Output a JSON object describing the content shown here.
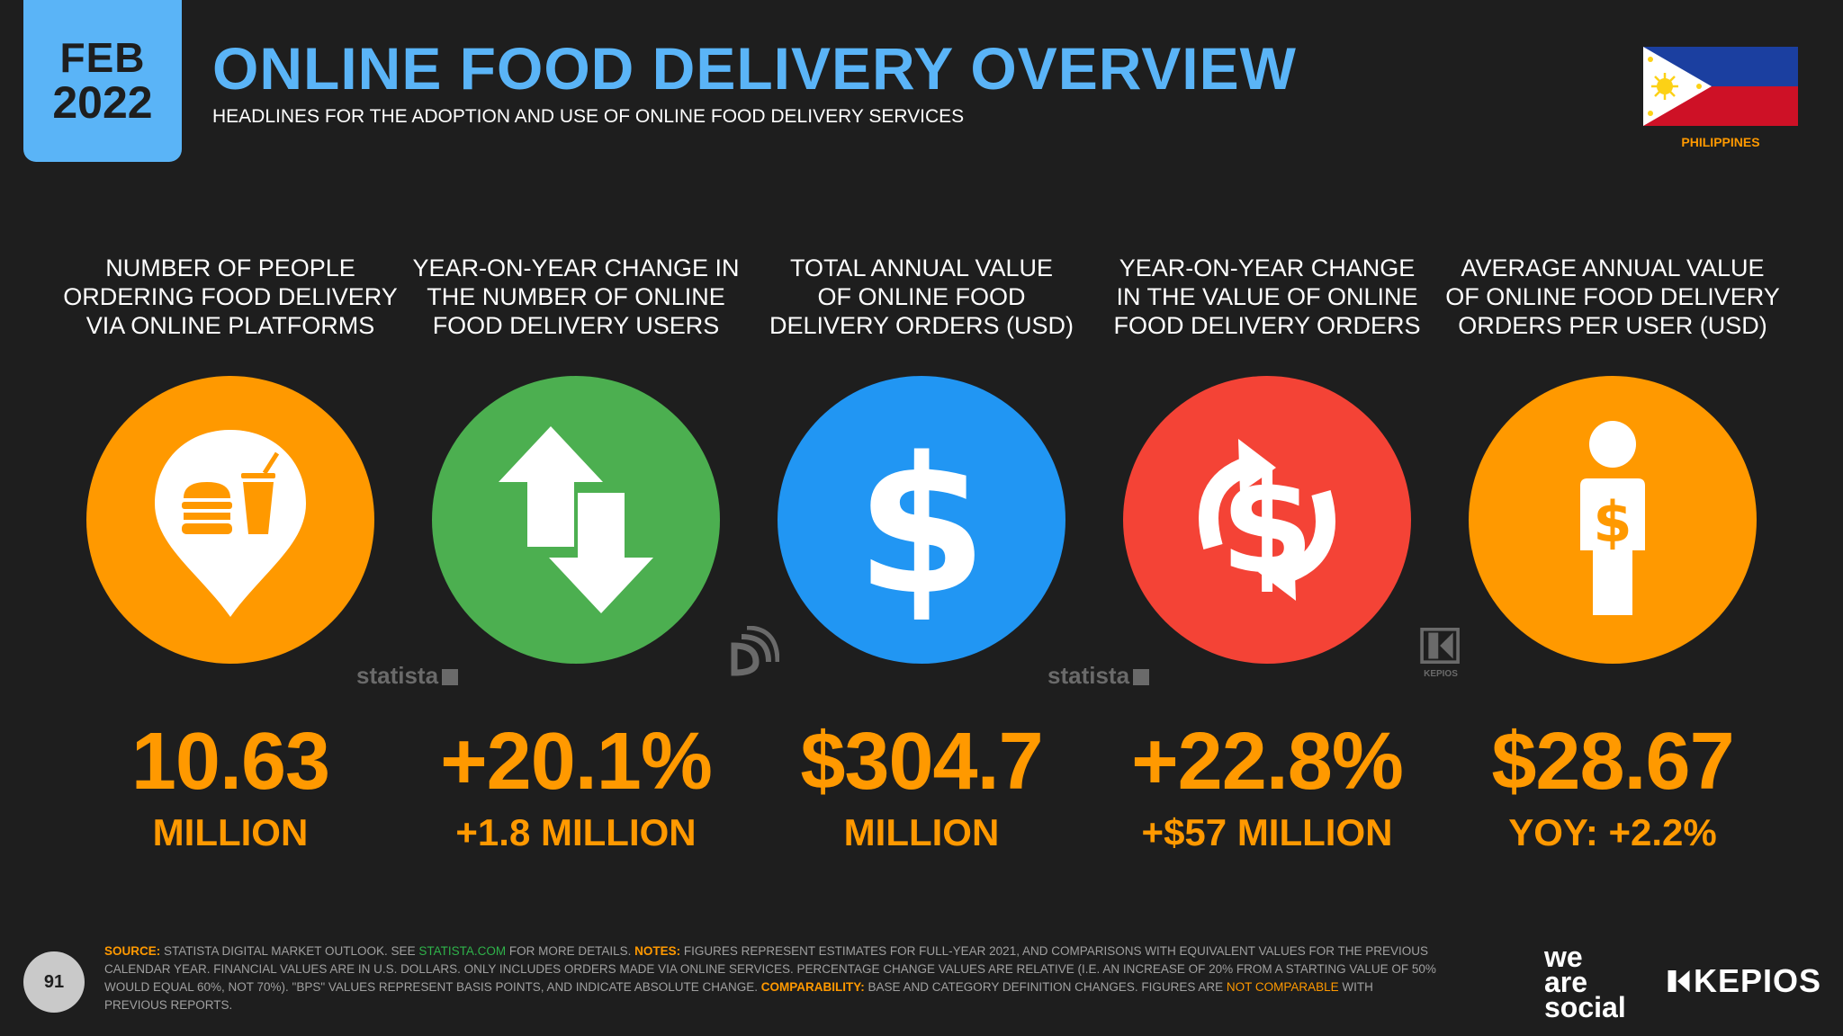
{
  "header": {
    "month": "FEB",
    "year": "2022",
    "title": "ONLINE FOOD DELIVERY OVERVIEW",
    "subtitle": "HEADLINES FOR THE ADOPTION AND USE OF ONLINE FOOD DELIVERY SERVICES",
    "country": "PHILIPPINES"
  },
  "metrics": [
    {
      "label_lines": [
        "NUMBER OF PEOPLE",
        "ORDERING FOOD DELIVERY",
        "VIA ONLINE PLATFORMS"
      ],
      "value": "10.63",
      "sub": "MILLION",
      "color": "#ff9900",
      "icon": "food-location-icon"
    },
    {
      "label_lines": [
        "YEAR-ON-YEAR CHANGE IN",
        "THE NUMBER OF ONLINE",
        "FOOD DELIVERY USERS"
      ],
      "value": "+20.1%",
      "sub": "+1.8 MILLION",
      "color": "#4caf50",
      "icon": "up-down-arrows-icon"
    },
    {
      "label_lines": [
        "TOTAL ANNUAL VALUE",
        "OF ONLINE FOOD",
        "DELIVERY ORDERS (USD)"
      ],
      "value": "$304.7",
      "sub": "MILLION",
      "color": "#2196f3",
      "icon": "dollar-icon"
    },
    {
      "label_lines": [
        "YEAR-ON-YEAR CHANGE",
        "IN THE VALUE OF ONLINE",
        "FOOD DELIVERY ORDERS"
      ],
      "value": "+22.8%",
      "sub": "+$57 MILLION",
      "color": "#f44336",
      "icon": "dollar-change-icon"
    },
    {
      "label_lines": [
        "AVERAGE ANNUAL VALUE",
        "OF ONLINE FOOD DELIVERY",
        "ORDERS PER USER (USD)"
      ],
      "value": "$28.67",
      "sub": "YOY: +2.2%",
      "color": "#ff9900",
      "icon": "person-dollar-icon"
    }
  ],
  "watermarks": {
    "statista": "statista",
    "kepios": "KEPIOS"
  },
  "footer": {
    "page_number": "91",
    "source_label": "SOURCE:",
    "source_text": " STATISTA DIGITAL MARKET OUTLOOK. SEE ",
    "source_link": "STATISTA.COM",
    "source_text2": " FOR MORE DETAILS. ",
    "notes_label": "NOTES:",
    "notes_text": " FIGURES REPRESENT ESTIMATES FOR FULL-YEAR 2021, AND COMPARISONS WITH EQUIVALENT VALUES FOR THE PREVIOUS CALENDAR YEAR. FINANCIAL VALUES ARE IN U.S. DOLLARS. ONLY INCLUDES ORDERS MADE VIA ONLINE SERVICES. PERCENTAGE CHANGE VALUES ARE RELATIVE (I.E. AN INCREASE OF 20% FROM A STARTING VALUE OF 50% WOULD EQUAL 60%, NOT 70%). \"BPS\" VALUES REPRESENT BASIS POINTS, AND INDICATE ABSOLUTE CHANGE. ",
    "comparability_label": "COMPARABILITY:",
    "comparability_text": " BASE AND CATEGORY DEFINITION CHANGES. FIGURES ARE ",
    "not_comparable": "NOT COMPARABLE",
    "comparability_text2": " WITH PREVIOUS REPORTS.",
    "brand1_line1": "we",
    "brand1_line2": "are",
    "brand1_line3": "social",
    "brand2": "KEPIOS"
  }
}
